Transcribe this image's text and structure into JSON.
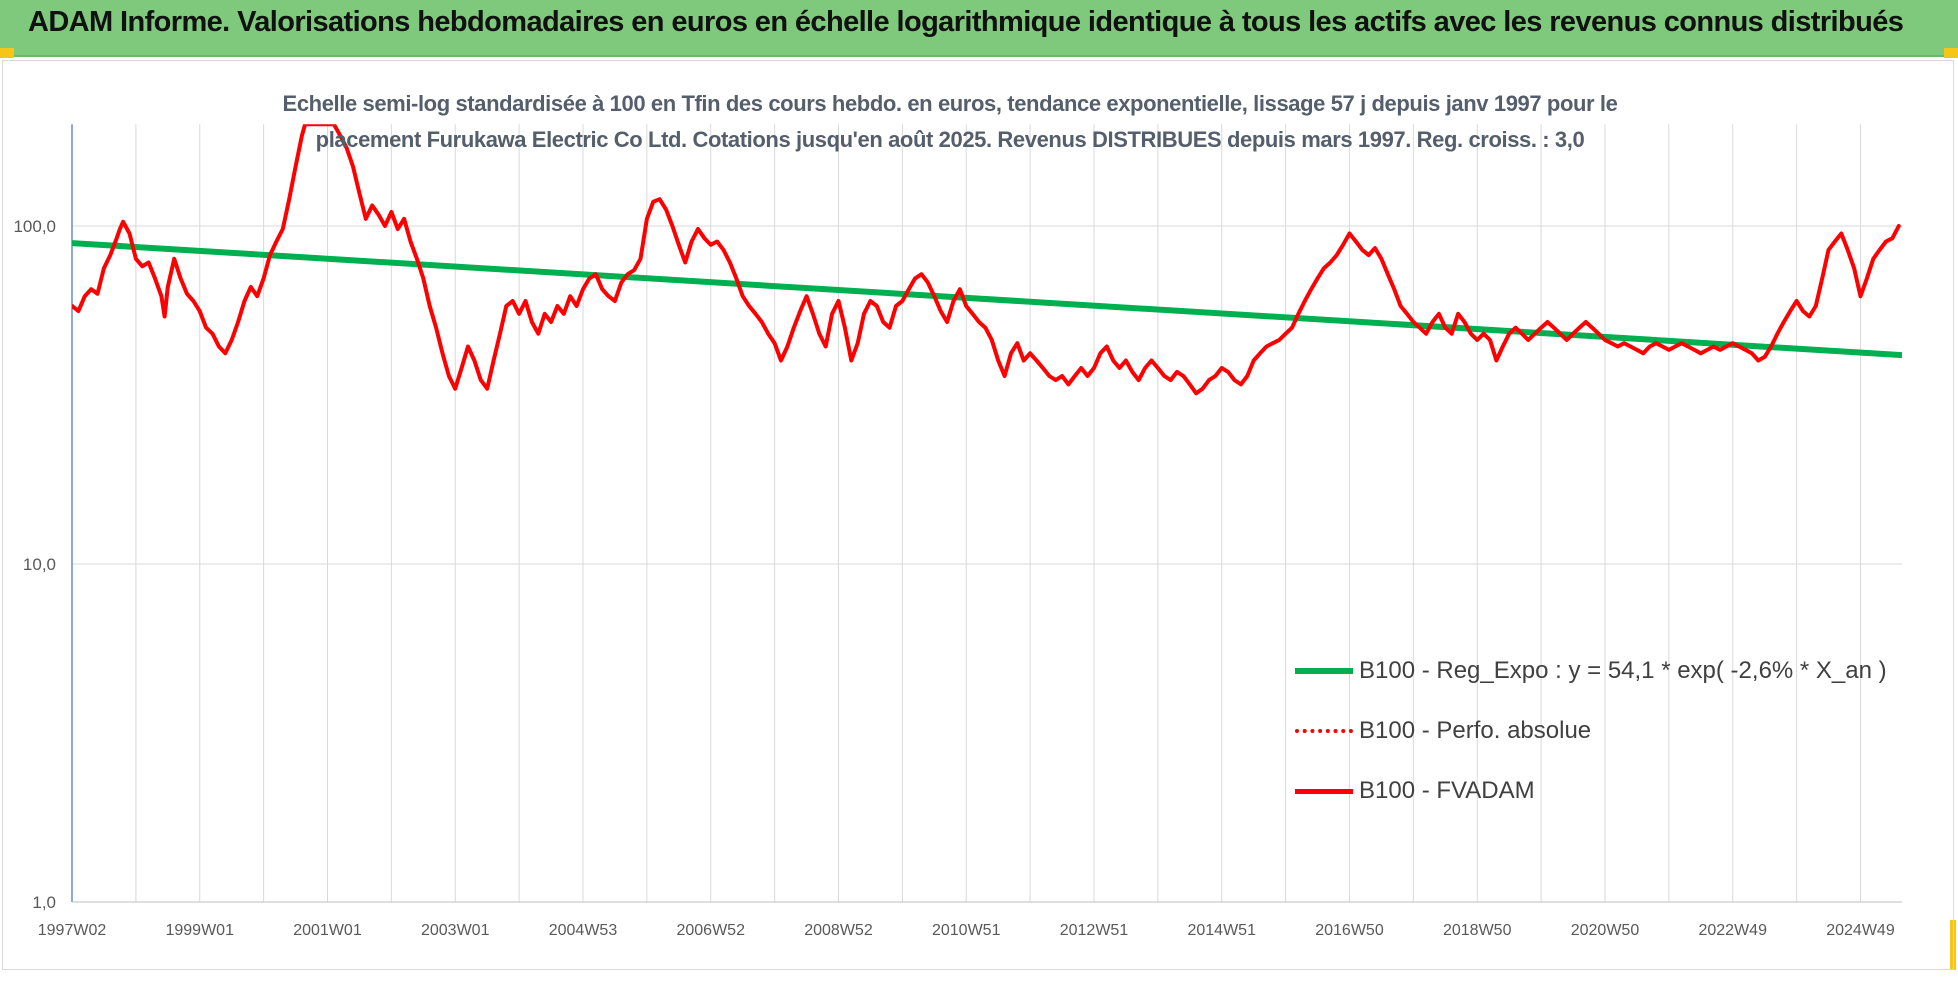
{
  "header": {
    "title": "ADAM Informe. Valorisations hebdomadaires en euros en échelle logarithmique identique à tous les actifs avec les revenus connus distribués"
  },
  "colors": {
    "banner": "#7ec97c",
    "trend": "#00b050",
    "price": "#ff0000",
    "grid": "#d9d9d9"
  },
  "chart_data": {
    "type": "line",
    "title_lines": [
      "Echelle semi-log standardisée à 100 en Tfin des cours hebdo. en euros, tendance exponentielle, lissage 57 j depuis janv 1997 pour le",
      "placement Furukawa Electric Co Ltd. Cotations jusqu'en août 2025. Revenus DISTRIBUES depuis mars 1997. Reg. croiss. : 3,0"
    ],
    "y_scale": "log",
    "ylim": [
      1,
      200
    ],
    "y_ticks": [
      {
        "value": 1,
        "label": "1,0"
      },
      {
        "value": 10,
        "label": "10,0"
      },
      {
        "value": 100,
        "label": "100,0"
      }
    ],
    "xlim": [
      1997.0,
      2025.65
    ],
    "x_ticks": [
      {
        "x": 1997.0,
        "label": "1997W02"
      },
      {
        "x": 1999.0,
        "label": "1999W01"
      },
      {
        "x": 2001.0,
        "label": "2001W01"
      },
      {
        "x": 2003.0,
        "label": "2003W01"
      },
      {
        "x": 2005.0,
        "label": "2004W53"
      },
      {
        "x": 2007.0,
        "label": "2006W52"
      },
      {
        "x": 2009.0,
        "label": "2008W52"
      },
      {
        "x": 2011.0,
        "label": "2010W51"
      },
      {
        "x": 2013.0,
        "label": "2012W51"
      },
      {
        "x": 2015.0,
        "label": "2014W51"
      },
      {
        "x": 2017.0,
        "label": "2016W50"
      },
      {
        "x": 2019.0,
        "label": "2018W50"
      },
      {
        "x": 2021.0,
        "label": "2020W50"
      },
      {
        "x": 2023.0,
        "label": "2022W49"
      },
      {
        "x": 2025.0,
        "label": "2024W49"
      }
    ],
    "legend_position": "bottom-right",
    "series": [
      {
        "name": "B100 - Reg_Expo : y = 54,1 * exp( -2,6% *  X_an )",
        "style": "solid-thick",
        "color": "#00b050",
        "points": [
          [
            1997.0,
            89
          ],
          [
            2025.65,
            41.5
          ]
        ]
      },
      {
        "name": "B100 - Perfo. absolue",
        "style": "dotted",
        "color": "#ff0000",
        "points": []
      },
      {
        "name": "B100 - FVADAM",
        "style": "solid",
        "color": "#ff0000",
        "points": [
          [
            1997.0,
            58
          ],
          [
            1997.1,
            56
          ],
          [
            1997.2,
            62
          ],
          [
            1997.3,
            65
          ],
          [
            1997.4,
            63
          ],
          [
            1997.5,
            75
          ],
          [
            1997.6,
            82
          ],
          [
            1997.7,
            92
          ],
          [
            1997.75,
            98
          ],
          [
            1997.8,
            103
          ],
          [
            1997.9,
            95
          ],
          [
            1998.0,
            80
          ],
          [
            1998.1,
            76
          ],
          [
            1998.2,
            78
          ],
          [
            1998.3,
            70
          ],
          [
            1998.4,
            62
          ],
          [
            1998.45,
            54
          ],
          [
            1998.5,
            66
          ],
          [
            1998.6,
            80
          ],
          [
            1998.7,
            70
          ],
          [
            1998.8,
            63
          ],
          [
            1998.9,
            60
          ],
          [
            1999.0,
            56
          ],
          [
            1999.1,
            50
          ],
          [
            1999.2,
            48
          ],
          [
            1999.3,
            44
          ],
          [
            1999.4,
            42
          ],
          [
            1999.5,
            46
          ],
          [
            1999.6,
            52
          ],
          [
            1999.7,
            60
          ],
          [
            1999.8,
            66
          ],
          [
            1999.9,
            62
          ],
          [
            2000.0,
            70
          ],
          [
            2000.1,
            82
          ],
          [
            2000.2,
            90
          ],
          [
            2000.3,
            98
          ],
          [
            2000.4,
            120
          ],
          [
            2000.5,
            150
          ],
          [
            2000.6,
            185
          ],
          [
            2000.65,
            200
          ],
          [
            2001.1,
            200
          ],
          [
            2001.2,
            185
          ],
          [
            2001.3,
            170
          ],
          [
            2001.4,
            150
          ],
          [
            2001.5,
            125
          ],
          [
            2001.6,
            105
          ],
          [
            2001.7,
            115
          ],
          [
            2001.8,
            108
          ],
          [
            2001.9,
            100
          ],
          [
            2002.0,
            110
          ],
          [
            2002.1,
            98
          ],
          [
            2002.2,
            105
          ],
          [
            2002.3,
            90
          ],
          [
            2002.4,
            80
          ],
          [
            2002.5,
            70
          ],
          [
            2002.6,
            58
          ],
          [
            2002.7,
            50
          ],
          [
            2002.8,
            42
          ],
          [
            2002.9,
            36
          ],
          [
            2003.0,
            33
          ],
          [
            2003.1,
            38
          ],
          [
            2003.2,
            44
          ],
          [
            2003.3,
            40
          ],
          [
            2003.4,
            35
          ],
          [
            2003.5,
            33
          ],
          [
            2003.6,
            40
          ],
          [
            2003.7,
            48
          ],
          [
            2003.8,
            58
          ],
          [
            2003.9,
            60
          ],
          [
            2004.0,
            55
          ],
          [
            2004.1,
            60
          ],
          [
            2004.2,
            52
          ],
          [
            2004.3,
            48
          ],
          [
            2004.4,
            55
          ],
          [
            2004.5,
            52
          ],
          [
            2004.6,
            58
          ],
          [
            2004.7,
            55
          ],
          [
            2004.8,
            62
          ],
          [
            2004.9,
            58
          ],
          [
            2005.0,
            65
          ],
          [
            2005.1,
            70
          ],
          [
            2005.2,
            72
          ],
          [
            2005.3,
            65
          ],
          [
            2005.4,
            62
          ],
          [
            2005.5,
            60
          ],
          [
            2005.6,
            68
          ],
          [
            2005.7,
            72
          ],
          [
            2005.8,
            74
          ],
          [
            2005.9,
            80
          ],
          [
            2006.0,
            105
          ],
          [
            2006.1,
            118
          ],
          [
            2006.2,
            120
          ],
          [
            2006.3,
            112
          ],
          [
            2006.4,
            100
          ],
          [
            2006.5,
            88
          ],
          [
            2006.6,
            78
          ],
          [
            2006.7,
            90
          ],
          [
            2006.8,
            98
          ],
          [
            2006.9,
            92
          ],
          [
            2007.0,
            88
          ],
          [
            2007.1,
            90
          ],
          [
            2007.2,
            85
          ],
          [
            2007.3,
            78
          ],
          [
            2007.4,
            70
          ],
          [
            2007.5,
            62
          ],
          [
            2007.6,
            58
          ],
          [
            2007.7,
            55
          ],
          [
            2007.8,
            52
          ],
          [
            2007.9,
            48
          ],
          [
            2008.0,
            45
          ],
          [
            2008.1,
            40
          ],
          [
            2008.2,
            44
          ],
          [
            2008.3,
            50
          ],
          [
            2008.4,
            56
          ],
          [
            2008.5,
            62
          ],
          [
            2008.6,
            55
          ],
          [
            2008.7,
            48
          ],
          [
            2008.8,
            44
          ],
          [
            2008.9,
            55
          ],
          [
            2009.0,
            60
          ],
          [
            2009.1,
            50
          ],
          [
            2009.2,
            40
          ],
          [
            2009.3,
            45
          ],
          [
            2009.4,
            55
          ],
          [
            2009.5,
            60
          ],
          [
            2009.6,
            58
          ],
          [
            2009.7,
            52
          ],
          [
            2009.8,
            50
          ],
          [
            2009.9,
            58
          ],
          [
            2010.0,
            60
          ],
          [
            2010.1,
            65
          ],
          [
            2010.2,
            70
          ],
          [
            2010.3,
            72
          ],
          [
            2010.4,
            68
          ],
          [
            2010.5,
            62
          ],
          [
            2010.6,
            56
          ],
          [
            2010.7,
            52
          ],
          [
            2010.8,
            60
          ],
          [
            2010.9,
            65
          ],
          [
            2011.0,
            58
          ],
          [
            2011.1,
            55
          ],
          [
            2011.2,
            52
          ],
          [
            2011.3,
            50
          ],
          [
            2011.4,
            46
          ],
          [
            2011.5,
            40
          ],
          [
            2011.6,
            36
          ],
          [
            2011.7,
            42
          ],
          [
            2011.8,
            45
          ],
          [
            2011.9,
            40
          ],
          [
            2012.0,
            42
          ],
          [
            2012.1,
            40
          ],
          [
            2012.2,
            38
          ],
          [
            2012.3,
            36
          ],
          [
            2012.4,
            35
          ],
          [
            2012.5,
            36
          ],
          [
            2012.6,
            34
          ],
          [
            2012.7,
            36
          ],
          [
            2012.8,
            38
          ],
          [
            2012.9,
            36
          ],
          [
            2013.0,
            38
          ],
          [
            2013.1,
            42
          ],
          [
            2013.2,
            44
          ],
          [
            2013.3,
            40
          ],
          [
            2013.4,
            38
          ],
          [
            2013.5,
            40
          ],
          [
            2013.6,
            37
          ],
          [
            2013.7,
            35
          ],
          [
            2013.8,
            38
          ],
          [
            2013.9,
            40
          ],
          [
            2014.0,
            38
          ],
          [
            2014.1,
            36
          ],
          [
            2014.2,
            35
          ],
          [
            2014.3,
            37
          ],
          [
            2014.4,
            36
          ],
          [
            2014.5,
            34
          ],
          [
            2014.6,
            32
          ],
          [
            2014.7,
            33
          ],
          [
            2014.8,
            35
          ],
          [
            2014.9,
            36
          ],
          [
            2015.0,
            38
          ],
          [
            2015.1,
            37
          ],
          [
            2015.2,
            35
          ],
          [
            2015.3,
            34
          ],
          [
            2015.4,
            36
          ],
          [
            2015.5,
            40
          ],
          [
            2015.6,
            42
          ],
          [
            2015.7,
            44
          ],
          [
            2015.8,
            45
          ],
          [
            2015.9,
            46
          ],
          [
            2016.0,
            48
          ],
          [
            2016.1,
            50
          ],
          [
            2016.2,
            55
          ],
          [
            2016.3,
            60
          ],
          [
            2016.4,
            65
          ],
          [
            2016.5,
            70
          ],
          [
            2016.6,
            75
          ],
          [
            2016.7,
            78
          ],
          [
            2016.8,
            82
          ],
          [
            2016.9,
            88
          ],
          [
            2017.0,
            95
          ],
          [
            2017.1,
            90
          ],
          [
            2017.2,
            85
          ],
          [
            2017.3,
            82
          ],
          [
            2017.4,
            86
          ],
          [
            2017.5,
            80
          ],
          [
            2017.6,
            72
          ],
          [
            2017.7,
            65
          ],
          [
            2017.8,
            58
          ],
          [
            2017.9,
            55
          ],
          [
            2018.0,
            52
          ],
          [
            2018.1,
            50
          ],
          [
            2018.2,
            48
          ],
          [
            2018.3,
            52
          ],
          [
            2018.4,
            55
          ],
          [
            2018.5,
            50
          ],
          [
            2018.6,
            48
          ],
          [
            2018.7,
            55
          ],
          [
            2018.8,
            52
          ],
          [
            2018.9,
            48
          ],
          [
            2019.0,
            46
          ],
          [
            2019.1,
            48
          ],
          [
            2019.2,
            46
          ],
          [
            2019.3,
            40
          ],
          [
            2019.4,
            44
          ],
          [
            2019.5,
            48
          ],
          [
            2019.6,
            50
          ],
          [
            2019.7,
            48
          ],
          [
            2019.8,
            46
          ],
          [
            2019.9,
            48
          ],
          [
            2020.0,
            50
          ],
          [
            2020.1,
            52
          ],
          [
            2020.2,
            50
          ],
          [
            2020.3,
            48
          ],
          [
            2020.4,
            46
          ],
          [
            2020.5,
            48
          ],
          [
            2020.6,
            50
          ],
          [
            2020.7,
            52
          ],
          [
            2020.8,
            50
          ],
          [
            2020.9,
            48
          ],
          [
            2021.0,
            46
          ],
          [
            2021.1,
            45
          ],
          [
            2021.2,
            44
          ],
          [
            2021.3,
            45
          ],
          [
            2021.4,
            44
          ],
          [
            2021.5,
            43
          ],
          [
            2021.6,
            42
          ],
          [
            2021.7,
            44
          ],
          [
            2021.8,
            45
          ],
          [
            2021.9,
            44
          ],
          [
            2022.0,
            43
          ],
          [
            2022.1,
            44
          ],
          [
            2022.2,
            45
          ],
          [
            2022.3,
            44
          ],
          [
            2022.4,
            43
          ],
          [
            2022.5,
            42
          ],
          [
            2022.6,
            43
          ],
          [
            2022.7,
            44
          ],
          [
            2022.8,
            43
          ],
          [
            2022.9,
            44
          ],
          [
            2023.0,
            45
          ],
          [
            2023.1,
            44
          ],
          [
            2023.2,
            43
          ],
          [
            2023.3,
            42
          ],
          [
            2023.4,
            40
          ],
          [
            2023.5,
            41
          ],
          [
            2023.6,
            44
          ],
          [
            2023.7,
            48
          ],
          [
            2023.8,
            52
          ],
          [
            2023.9,
            56
          ],
          [
            2024.0,
            60
          ],
          [
            2024.1,
            56
          ],
          [
            2024.2,
            54
          ],
          [
            2024.3,
            58
          ],
          [
            2024.4,
            70
          ],
          [
            2024.5,
            85
          ],
          [
            2024.6,
            90
          ],
          [
            2024.7,
            95
          ],
          [
            2024.8,
            85
          ],
          [
            2024.9,
            75
          ],
          [
            2025.0,
            62
          ],
          [
            2025.1,
            70
          ],
          [
            2025.2,
            80
          ],
          [
            2025.3,
            85
          ],
          [
            2025.4,
            90
          ],
          [
            2025.5,
            92
          ],
          [
            2025.6,
            100
          ]
        ]
      }
    ]
  }
}
